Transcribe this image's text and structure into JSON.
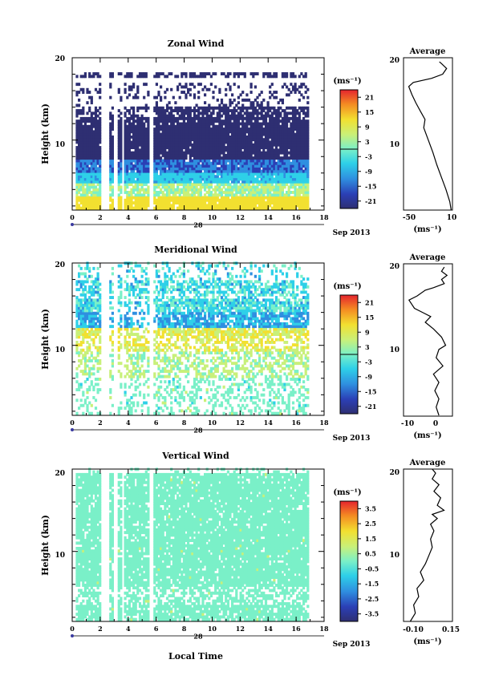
{
  "figure": {
    "date_label": "Sep 2013",
    "day_label": "28",
    "xlabel": "Local Time"
  },
  "chart_data": [
    {
      "id": "zonal",
      "type": "heatmap",
      "title": "Zonal Wind",
      "ylabel": "Height (km)",
      "x_ticks": [
        "0",
        "2",
        "4",
        "6",
        "8",
        "10",
        "12",
        "14",
        "16",
        "18"
      ],
      "y_ticks": [
        "10",
        "20"
      ],
      "xlim": [
        0,
        18
      ],
      "ylim": [
        1.5,
        20
      ],
      "colorbar": {
        "unit": "(ms⁻¹)",
        "ticks": [
          "21",
          "15",
          "9",
          "3",
          "-3",
          "-9",
          "-15",
          "-21"
        ],
        "range": [
          -24,
          24
        ]
      },
      "gaps_hours": [
        [
          2.0,
          2.5
        ],
        [
          2.9,
          3.2
        ],
        [
          3.45,
          3.6
        ],
        [
          5.5,
          5.8
        ]
      ],
      "data_end_hour": 16.8,
      "profile": {
        "title": "Average",
        "unit": "(ms⁻¹)",
        "x_ticks": [
          "-50",
          "10"
        ],
        "xlim": [
          -63,
          12
        ],
        "y_ticks": [
          "10",
          "20"
        ],
        "ylim": [
          1.5,
          20
        ],
        "points": [
          [
            10,
            1.5
          ],
          [
            8,
            2.5
          ],
          [
            2,
            4
          ],
          [
            -5,
            5.5
          ],
          [
            -12,
            7
          ],
          [
            -18,
            8.5
          ],
          [
            -25,
            10
          ],
          [
            -32,
            11.5
          ],
          [
            -30,
            12.5
          ],
          [
            -37,
            13.5
          ],
          [
            -44,
            14.5
          ],
          [
            -50,
            15.5
          ],
          [
            -55,
            16.5
          ],
          [
            -48,
            17
          ],
          [
            -20,
            17.5
          ],
          [
            -3,
            18
          ],
          [
            3,
            18.7
          ],
          [
            -5,
            19.3
          ],
          [
            -8,
            19.5
          ]
        ]
      }
    },
    {
      "id": "meridional",
      "type": "heatmap",
      "title": "Meridional Wind",
      "ylabel": "Height (km)",
      "x_ticks": [
        "0",
        "2",
        "4",
        "6",
        "8",
        "10",
        "12",
        "14",
        "16",
        "18"
      ],
      "y_ticks": [
        "10",
        "20"
      ],
      "xlim": [
        0,
        18
      ],
      "ylim": [
        1.5,
        20
      ],
      "colorbar": {
        "unit": "(ms⁻¹)",
        "ticks": [
          "21",
          "15",
          "9",
          "3",
          "-3",
          "-9",
          "-15",
          "-21"
        ],
        "range": [
          -24,
          24
        ]
      },
      "gaps_hours": [
        [
          2.0,
          2.5
        ],
        [
          2.9,
          3.2
        ],
        [
          3.45,
          3.6
        ],
        [
          5.5,
          5.8
        ]
      ],
      "data_end_hour": 16.8,
      "profile": {
        "title": "Average",
        "unit": "(ms⁻¹)",
        "x_ticks": [
          "-10",
          "0"
        ],
        "xlim": [
          -13,
          5
        ],
        "y_ticks": [
          "10",
          "20"
        ],
        "ylim": [
          1.5,
          20
        ],
        "points": [
          [
            0,
            1.5
          ],
          [
            -1,
            2.5
          ],
          [
            0,
            3.5
          ],
          [
            -1.5,
            4.5
          ],
          [
            0,
            5.5
          ],
          [
            -2,
            6.5
          ],
          [
            1.5,
            7.5
          ],
          [
            -1,
            8.5
          ],
          [
            0,
            9.5
          ],
          [
            2.5,
            10
          ],
          [
            1,
            11
          ],
          [
            -2,
            12
          ],
          [
            -5,
            12.8
          ],
          [
            -3,
            13.5
          ],
          [
            -6,
            14
          ],
          [
            -9,
            14.5
          ],
          [
            -11,
            15.5
          ],
          [
            -8,
            16
          ],
          [
            -5,
            16.7
          ],
          [
            -2,
            17
          ],
          [
            2,
            17.5
          ],
          [
            1,
            18
          ],
          [
            3,
            18.5
          ],
          [
            1,
            19
          ],
          [
            2,
            19.5
          ]
        ]
      }
    },
    {
      "id": "vertical",
      "type": "heatmap",
      "title": "Vertical Wind",
      "ylabel": "Height (km)",
      "x_ticks": [
        "0",
        "2",
        "4",
        "6",
        "8",
        "10",
        "12",
        "14",
        "16",
        "18"
      ],
      "y_ticks": [
        "10",
        "20"
      ],
      "xlim": [
        0,
        18
      ],
      "ylim": [
        1.5,
        20
      ],
      "colorbar": {
        "unit": "(ms⁻¹)",
        "ticks": [
          "3.5",
          "2.5",
          "1.5",
          "0.5",
          "-0.5",
          "-1.5",
          "-2.5",
          "-3.5"
        ],
        "range": [
          -4,
          4
        ]
      },
      "gaps_hours": [
        [
          2.0,
          2.5
        ],
        [
          2.9,
          3.2
        ],
        [
          3.45,
          3.6
        ],
        [
          5.5,
          5.8
        ]
      ],
      "data_end_hour": 16.8,
      "profile": {
        "title": "Average",
        "unit": "(ms⁻¹)",
        "x_ticks": [
          "-0.10",
          "0.15"
        ],
        "xlim": [
          -0.12,
          0.17
        ],
        "y_ticks": [
          "10",
          "20"
        ],
        "ylim": [
          1.5,
          20
        ],
        "points": [
          [
            -0.08,
            1.5
          ],
          [
            -0.05,
            2.5
          ],
          [
            -0.06,
            3.5
          ],
          [
            -0.03,
            4.5
          ],
          [
            -0.04,
            5.5
          ],
          [
            0,
            6.5
          ],
          [
            -0.02,
            7.5
          ],
          [
            0.01,
            8.5
          ],
          [
            0.03,
            9.5
          ],
          [
            0.05,
            10.5
          ],
          [
            0.04,
            11.5
          ],
          [
            0.06,
            12.5
          ],
          [
            0.04,
            13.3
          ],
          [
            0.08,
            14
          ],
          [
            0.05,
            14.5
          ],
          [
            0.12,
            15
          ],
          [
            0.08,
            15.6
          ],
          [
            0.1,
            16.5
          ],
          [
            0.06,
            17.3
          ],
          [
            0.09,
            18.1
          ],
          [
            0.05,
            18.8
          ],
          [
            0.07,
            19.5
          ],
          [
            0.05,
            20
          ]
        ]
      }
    }
  ]
}
